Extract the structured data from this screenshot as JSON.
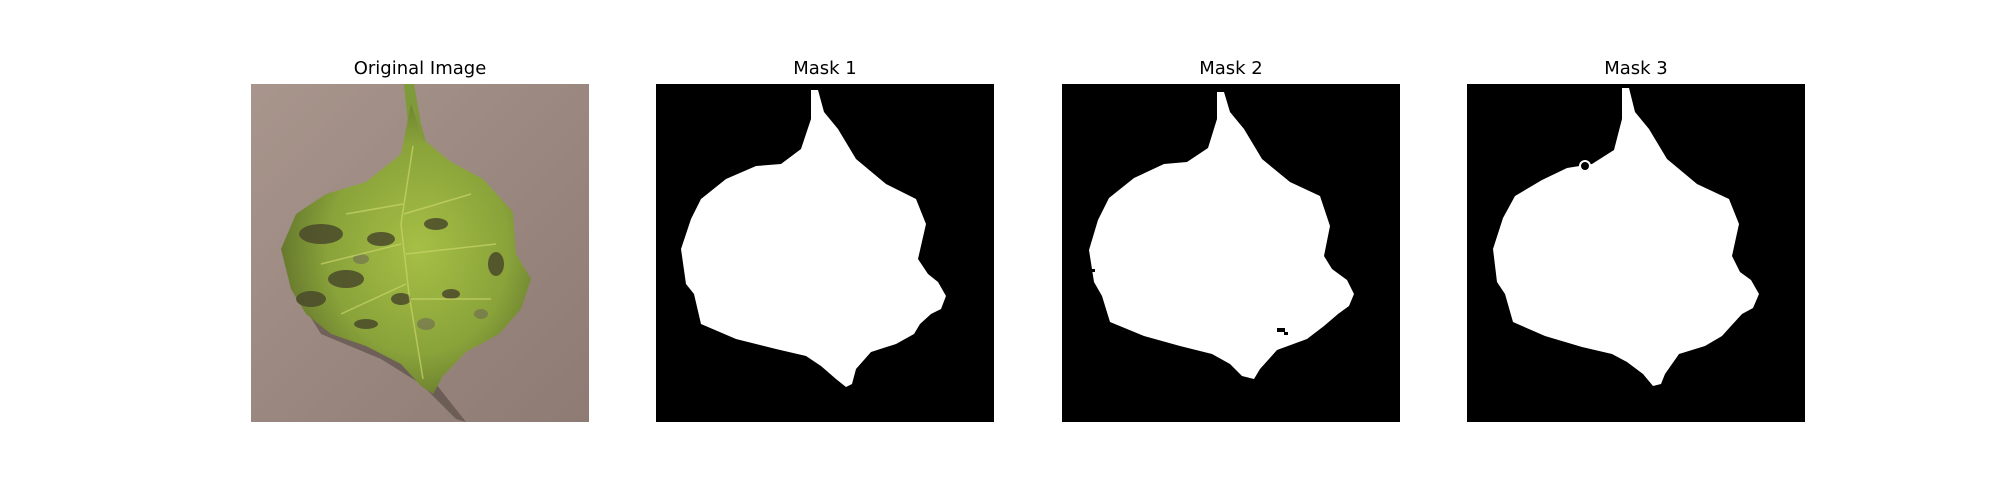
{
  "figure": {
    "panels": [
      {
        "title": "Original Image",
        "kind": "photo",
        "subject": "leaf-photo"
      },
      {
        "title": "Mask 1",
        "kind": "mask",
        "subject": "leaf-mask"
      },
      {
        "title": "Mask 2",
        "kind": "mask",
        "subject": "leaf-mask"
      },
      {
        "title": "Mask 3",
        "kind": "mask",
        "subject": "leaf-mask"
      }
    ]
  },
  "colors": {
    "background": "#ffffff",
    "mask_background": "#000000",
    "mask_foreground": "#ffffff",
    "photo_background": "#9a8880",
    "leaf_green": "#8aa33a",
    "leaf_dark_spot": "#4a4a2a"
  }
}
